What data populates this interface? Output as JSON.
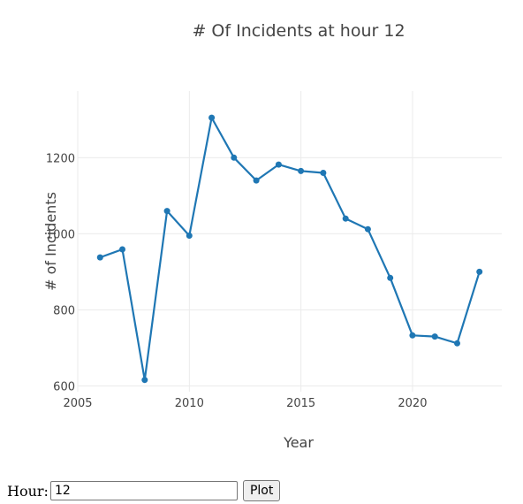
{
  "chart_data": {
    "type": "line",
    "title": "# Of Incidents at hour 12",
    "xlabel": "Year",
    "ylabel": "# of Incidents",
    "x": [
      2006,
      2007,
      2008,
      2009,
      2010,
      2011,
      2012,
      2013,
      2014,
      2015,
      2016,
      2017,
      2018,
      2019,
      2020,
      2021,
      2022,
      2023
    ],
    "series": [
      {
        "values": [
          938,
          959,
          616,
          1060,
          995,
          1305,
          1200,
          1140,
          1182,
          1165,
          1160,
          1040,
          1012,
          884,
          733,
          730,
          712,
          900
        ],
        "color": "#1f77b4"
      }
    ],
    "xlim": [
      2005,
      2024
    ],
    "ylim": [
      585,
      1375
    ],
    "xticks": [
      2005,
      2010,
      2015,
      2020
    ],
    "yticks": [
      600,
      800,
      1000,
      1200
    ],
    "grid": true,
    "markers": true
  },
  "controls": {
    "hour_label": "Hour:",
    "hour_value": "12",
    "plot_label": "Plot"
  }
}
